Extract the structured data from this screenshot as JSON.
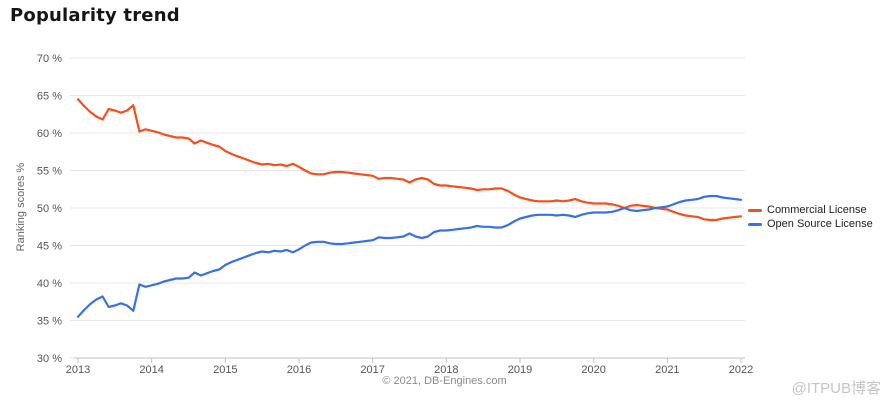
{
  "title": "Popularity trend",
  "copyright": "© 2021, DB-Engines.com",
  "watermark": "@ITPUB博客",
  "chart_data": {
    "type": "line",
    "title": "Popularity trend",
    "xlabel": "",
    "ylabel": "Ranking scores %",
    "ylim": [
      30,
      70
    ],
    "xlim": [
      2013,
      2022
    ],
    "grid": "horizontal",
    "grid_color": "#e8e8e8",
    "axis_color": "#c2c2c2",
    "legend_position": "right",
    "x_unit": "months, Jan 2013 through Jan 2022",
    "y_ticks": [
      {
        "value": 70,
        "label": "70 %"
      },
      {
        "value": 65,
        "label": "65 %"
      },
      {
        "value": 60,
        "label": "60 %"
      },
      {
        "value": 55,
        "label": "55 %"
      },
      {
        "value": 50,
        "label": "50 %"
      },
      {
        "value": 45,
        "label": "45 %"
      },
      {
        "value": 40,
        "label": "40 %"
      },
      {
        "value": 35,
        "label": "35 %"
      },
      {
        "value": 30,
        "label": "30 %"
      }
    ],
    "x_ticks": [
      {
        "value": 2013,
        "label": "2013"
      },
      {
        "value": 2014,
        "label": "2014"
      },
      {
        "value": 2015,
        "label": "2015"
      },
      {
        "value": 2016,
        "label": "2016"
      },
      {
        "value": 2017,
        "label": "2017"
      },
      {
        "value": 2018,
        "label": "2018"
      },
      {
        "value": 2019,
        "label": "2019"
      },
      {
        "value": 2020,
        "label": "2020"
      },
      {
        "value": 2021,
        "label": "2021"
      },
      {
        "value": 2022,
        "label": "2022"
      }
    ],
    "series": [
      {
        "name": "Commercial License",
        "color": "#f4501e",
        "values": [
          64.5,
          63.6,
          62.8,
          62.2,
          61.8,
          63.2,
          63.0,
          62.7,
          63.0,
          63.7,
          60.2,
          60.5,
          60.3,
          60.1,
          59.8,
          59.6,
          59.4,
          59.4,
          59.3,
          58.6,
          59.0,
          58.7,
          58.4,
          58.2,
          57.6,
          57.2,
          56.9,
          56.6,
          56.3,
          56.0,
          55.8,
          55.9,
          55.7,
          55.8,
          55.6,
          55.9,
          55.5,
          55.0,
          54.6,
          54.5,
          54.5,
          54.7,
          54.8,
          54.8,
          54.7,
          54.6,
          54.5,
          54.4,
          54.3,
          53.9,
          54.0,
          54.0,
          53.9,
          53.8,
          53.4,
          53.8,
          54.0,
          53.8,
          53.2,
          53.0,
          53.0,
          52.9,
          52.8,
          52.7,
          52.6,
          52.4,
          52.5,
          52.5,
          52.6,
          52.6,
          52.3,
          51.8,
          51.4,
          51.2,
          51.0,
          50.9,
          50.9,
          50.9,
          51.0,
          50.9,
          51.0,
          51.2,
          50.9,
          50.7,
          50.6,
          50.6,
          50.6,
          50.5,
          50.3,
          50.0,
          50.3,
          50.4,
          50.3,
          50.2,
          50.0,
          49.9,
          49.8,
          49.5,
          49.2,
          49.0,
          48.9,
          48.8,
          48.5,
          48.4,
          48.4,
          48.6,
          48.7,
          48.8,
          48.9
        ]
      },
      {
        "name": "Open Source License",
        "color": "#3a70e6",
        "values": [
          35.5,
          36.4,
          37.2,
          37.8,
          38.2,
          36.8,
          37.0,
          37.3,
          37.0,
          36.3,
          39.8,
          39.5,
          39.7,
          39.9,
          40.2,
          40.4,
          40.6,
          40.6,
          40.7,
          41.4,
          41.0,
          41.3,
          41.6,
          41.8,
          42.4,
          42.8,
          43.1,
          43.4,
          43.7,
          44.0,
          44.2,
          44.1,
          44.3,
          44.2,
          44.4,
          44.1,
          44.5,
          45.0,
          45.4,
          45.5,
          45.5,
          45.3,
          45.2,
          45.2,
          45.3,
          45.4,
          45.5,
          45.6,
          45.7,
          46.1,
          46.0,
          46.0,
          46.1,
          46.2,
          46.6,
          46.2,
          46.0,
          46.2,
          46.8,
          47.0,
          47.0,
          47.1,
          47.2,
          47.3,
          47.4,
          47.6,
          47.5,
          47.5,
          47.4,
          47.4,
          47.7,
          48.2,
          48.6,
          48.8,
          49.0,
          49.1,
          49.1,
          49.1,
          49.0,
          49.1,
          49.0,
          48.8,
          49.1,
          49.3,
          49.4,
          49.4,
          49.4,
          49.5,
          49.7,
          50.0,
          49.7,
          49.6,
          49.7,
          49.8,
          50.0,
          50.1,
          50.2,
          50.5,
          50.8,
          51.0,
          51.1,
          51.2,
          51.5,
          51.6,
          51.6,
          51.4,
          51.3,
          51.2,
          51.1
        ]
      }
    ]
  }
}
